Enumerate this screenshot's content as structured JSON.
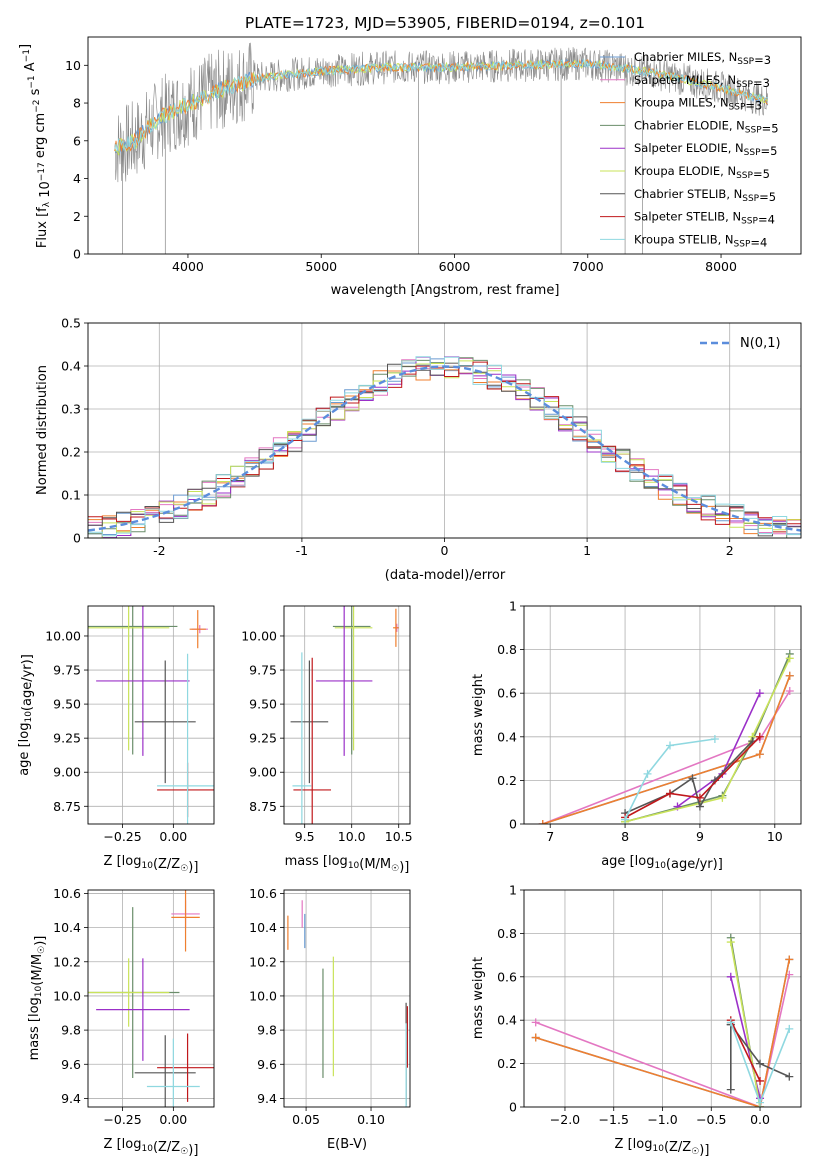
{
  "figure": {
    "title": "PLATE=1723, MJD=53905, FIBERID=0194, z=0.101"
  },
  "legend_entries": [
    {
      "label": "Chabrier MILES, N_SSP=3",
      "color": "#6b9bd1"
    },
    {
      "label": "Salpeter MILES, N_SSP=3",
      "color": "#e377c2"
    },
    {
      "label": "Kroupa MILES, N_SSP=3",
      "color": "#ef7f2f"
    },
    {
      "label": "Chabrier ELODIE, N_SSP=5",
      "color": "#6a8d6a"
    },
    {
      "label": "Salpeter ELODIE, N_SSP=5",
      "color": "#9b30c8"
    },
    {
      "label": "Kroupa ELODIE, N_SSP=5",
      "color": "#c9e35a"
    },
    {
      "label": "Chabrier STELIB, N_SSP=5",
      "color": "#555555"
    },
    {
      "label": "Salpeter STELIB, N_SSP=4",
      "color": "#c0181b"
    },
    {
      "label": "Kroupa STELIB, N_SSP=4",
      "color": "#8fd8e0"
    }
  ],
  "chart_data": [
    {
      "id": "spectrum",
      "type": "line",
      "xlabel": "wavelength [Angstrom, rest frame]",
      "ylabel": "Flux [f_λ 10^-17 erg cm^-2 s^-1 A^-1]",
      "xlim": [
        3250,
        8600
      ],
      "ylim": [
        0,
        11.5
      ],
      "xticks": [
        4000,
        5000,
        6000,
        7000,
        8000
      ],
      "yticks": [
        0,
        2,
        4,
        6,
        8,
        10
      ],
      "grid": false,
      "legend_position": "lower-right",
      "continuum_points": [
        [
          3450,
          5.6
        ],
        [
          3600,
          6.0
        ],
        [
          3800,
          7.3
        ],
        [
          4000,
          7.9
        ],
        [
          4200,
          8.6
        ],
        [
          4500,
          9.3
        ],
        [
          5000,
          9.7
        ],
        [
          5500,
          9.9
        ],
        [
          6000,
          9.9
        ],
        [
          6500,
          10.0
        ],
        [
          7000,
          10.1
        ],
        [
          7500,
          9.6
        ],
        [
          8000,
          8.8
        ],
        [
          8350,
          8.1
        ]
      ],
      "data_range": [
        3450,
        8350
      ]
    },
    {
      "id": "residual_histogram",
      "type": "histogram",
      "xlabel": "(data-model)/error",
      "ylabel": "Normed distribution",
      "xlim": [
        -2.5,
        2.5
      ],
      "ylim": [
        0,
        0.5
      ],
      "xticks": [
        -2,
        -1,
        0,
        1,
        2
      ],
      "yticks": [
        0.0,
        0.1,
        0.2,
        0.3,
        0.4,
        0.5
      ],
      "grid": true,
      "bin_width": 0.1,
      "reference_curve": {
        "label": "N(0,1)",
        "mean": 0,
        "sigma": 1,
        "color": "#5b8ddc"
      },
      "legend_position": "upper-right"
    },
    {
      "id": "age_vs_Z",
      "type": "errorbar",
      "xlabel": "Z [log10(Z/Z☉)]",
      "ylabel": "age [log10(age/yr)]",
      "xlim": [
        -0.42,
        0.2
      ],
      "ylim": [
        8.62,
        10.22
      ],
      "xticks": [
        -0.25,
        0.0
      ],
      "xtick_labels": [
        "−0.25",
        "0.00"
      ],
      "yticks": [
        8.75,
        9.0,
        9.25,
        9.5,
        9.75,
        10.0
      ],
      "ytick_labels": [
        "8.75",
        "9.00",
        "9.25",
        "9.50",
        "9.75",
        "10.00"
      ],
      "grid": true,
      "points": [
        {
          "x": 0.13,
          "y": 10.05,
          "xerr": 0.04,
          "yerr": 0.03,
          "color": "#e377c2"
        },
        {
          "x": 0.12,
          "y": 10.05,
          "xerr": 0.04,
          "yerr": 0.14,
          "color": "#ef7f2f"
        },
        {
          "x": -0.2,
          "y": 10.07,
          "xerr": 0.22,
          "yerr": 0.94,
          "color": "#6a8d6a"
        },
        {
          "x": -0.22,
          "y": 10.06,
          "xerr": 0.2,
          "yerr": 0.9,
          "color": "#c9e35a"
        },
        {
          "x": -0.15,
          "y": 9.67,
          "xerr": 0.23,
          "yerr": 0.55,
          "color": "#9b30c8"
        },
        {
          "x": -0.04,
          "y": 9.37,
          "xerr": 0.15,
          "yerr": 0.45,
          "color": "#555555"
        },
        {
          "x": 0.07,
          "y": 8.87,
          "xerr": 0.15,
          "yerr": 0.2,
          "color": "#c0181b"
        },
        {
          "x": 0.07,
          "y": 8.9,
          "xerr": 0.15,
          "yerr": 0.97,
          "color": "#8fd8e0"
        }
      ]
    },
    {
      "id": "age_vs_mass",
      "type": "errorbar",
      "xlabel": "mass [log10(M/M☉)]",
      "ylabel": "",
      "xlim": [
        9.28,
        10.62
      ],
      "ylim": [
        8.62,
        10.22
      ],
      "xticks": [
        9.5,
        10.0,
        10.5
      ],
      "xtick_labels": [
        "9.5",
        "10.0",
        "10.5"
      ],
      "yticks": [
        8.75,
        9.0,
        9.25,
        9.5,
        9.75,
        10.0
      ],
      "ytick_labels": [
        "8.75",
        "9.00",
        "9.25",
        "9.50",
        "9.75",
        "10.00"
      ],
      "grid": true,
      "points": [
        {
          "x": 10.48,
          "y": 10.06,
          "xerr": 0.02,
          "yerr": 0.03,
          "color": "#e377c2"
        },
        {
          "x": 10.47,
          "y": 10.06,
          "xerr": 0.03,
          "yerr": 0.14,
          "color": "#ef7f2f"
        },
        {
          "x": 10.0,
          "y": 10.07,
          "xerr": 0.2,
          "yerr": 0.94,
          "color": "#6a8d6a"
        },
        {
          "x": 10.02,
          "y": 10.06,
          "xerr": 0.2,
          "yerr": 0.9,
          "color": "#c9e35a"
        },
        {
          "x": 9.92,
          "y": 9.67,
          "xerr": 0.3,
          "yerr": 0.55,
          "color": "#9b30c8"
        },
        {
          "x": 9.55,
          "y": 9.37,
          "xerr": 0.2,
          "yerr": 0.45,
          "color": "#555555"
        },
        {
          "x": 9.58,
          "y": 8.87,
          "xerr": 0.2,
          "yerr": 0.97,
          "color": "#c0181b"
        },
        {
          "x": 9.47,
          "y": 8.9,
          "xerr": 0.1,
          "yerr": 0.98,
          "color": "#8fd8e0"
        }
      ]
    },
    {
      "id": "mass_weight_vs_age",
      "type": "line",
      "xlabel": "age [log10(age/yr)]",
      "ylabel": "mass weight",
      "xlim": [
        6.65,
        10.35
      ],
      "ylim": [
        0,
        1.0
      ],
      "xticks": [
        7,
        8,
        9,
        10
      ],
      "yticks": [
        0.0,
        0.2,
        0.4,
        0.6,
        0.8,
        1.0
      ],
      "grid": true,
      "series": [
        {
          "color": "#6b9bd1",
          "points": [
            [
              6.9,
              0.0
            ],
            [
              9.8,
              0.32
            ],
            [
              10.2,
              0.68
            ]
          ]
        },
        {
          "color": "#e377c2",
          "points": [
            [
              6.9,
              0.0
            ],
            [
              9.8,
              0.39
            ],
            [
              10.2,
              0.61
            ]
          ]
        },
        {
          "color": "#ef7f2f",
          "points": [
            [
              6.9,
              0.0
            ],
            [
              9.8,
              0.32
            ],
            [
              10.2,
              0.68
            ]
          ]
        },
        {
          "color": "#6a8d6a",
          "points": [
            [
              8.0,
              0.01
            ],
            [
              9.3,
              0.13
            ],
            [
              9.7,
              0.38
            ],
            [
              10.2,
              0.78
            ]
          ]
        },
        {
          "color": "#9b30c8",
          "points": [
            [
              8.7,
              0.08
            ],
            [
              9.3,
              0.23
            ],
            [
              9.8,
              0.6
            ]
          ]
        },
        {
          "color": "#c9e35a",
          "points": [
            [
              8.0,
              0.01
            ],
            [
              9.3,
              0.12
            ],
            [
              9.7,
              0.4
            ],
            [
              10.2,
              0.76
            ]
          ]
        },
        {
          "color": "#555555",
          "points": [
            [
              8.0,
              0.05
            ],
            [
              8.6,
              0.14
            ],
            [
              8.9,
              0.21
            ],
            [
              9.0,
              0.08
            ],
            [
              9.2,
              0.2
            ],
            [
              9.7,
              0.38
            ]
          ]
        },
        {
          "color": "#c0181b",
          "points": [
            [
              8.0,
              0.03
            ],
            [
              8.6,
              0.14
            ],
            [
              9.0,
              0.12
            ],
            [
              9.8,
              0.4
            ]
          ]
        },
        {
          "color": "#8fd8e0",
          "points": [
            [
              8.0,
              0.02
            ],
            [
              8.3,
              0.23
            ],
            [
              8.6,
              0.36
            ],
            [
              9.2,
              0.39
            ]
          ]
        }
      ]
    },
    {
      "id": "mass_vs_Z",
      "type": "errorbar",
      "xlabel": "Z [log10(Z/Z☉)]",
      "ylabel": "mass [log10(M/M☉)]",
      "xlim": [
        -0.42,
        0.2
      ],
      "ylim": [
        9.35,
        10.62
      ],
      "xticks": [
        -0.25,
        0.0
      ],
      "xtick_labels": [
        "−0.25",
        "0.00"
      ],
      "yticks": [
        9.4,
        9.6,
        9.8,
        10.0,
        10.2,
        10.4,
        10.6
      ],
      "ytick_labels": [
        "9.4",
        "9.6",
        "9.8",
        "10.0",
        "10.2",
        "10.4",
        "10.6"
      ],
      "grid": true,
      "points": [
        {
          "x": 0.06,
          "y": 10.48,
          "xerr": 0.07,
          "yerr": 0.08,
          "color": "#e377c2"
        },
        {
          "x": 0.06,
          "y": 10.46,
          "xerr": 0.07,
          "yerr": 0.2,
          "color": "#ef7f2f"
        },
        {
          "x": -0.2,
          "y": 10.02,
          "xerr": 0.23,
          "yerr": 0.5,
          "color": "#6a8d6a"
        },
        {
          "x": -0.22,
          "y": 10.02,
          "xerr": 0.2,
          "yerr": 0.2,
          "color": "#c9e35a"
        },
        {
          "x": -0.15,
          "y": 9.92,
          "xerr": 0.23,
          "yerr": 0.3,
          "color": "#9b30c8"
        },
        {
          "x": -0.04,
          "y": 9.55,
          "xerr": 0.15,
          "yerr": 0.22,
          "color": "#555555"
        },
        {
          "x": 0.07,
          "y": 9.58,
          "xerr": 0.15,
          "yerr": 0.2,
          "color": "#c0181b"
        },
        {
          "x": 0.0,
          "y": 9.47,
          "xerr": 0.13,
          "yerr": 0.28,
          "color": "#8fd8e0"
        }
      ]
    },
    {
      "id": "mass_vs_EBV",
      "type": "errorbar",
      "xlabel": "E(B-V)",
      "ylabel": "",
      "xlim": [
        0.033,
        0.13
      ],
      "ylim": [
        9.35,
        10.62
      ],
      "xticks": [
        0.05,
        0.1
      ],
      "xtick_labels": [
        "0.05",
        "0.10"
      ],
      "yticks": [
        9.4,
        9.6,
        9.8,
        10.0,
        10.2,
        10.4,
        10.6
      ],
      "ytick_labels": [
        "9.4",
        "9.6",
        "9.8",
        "10.0",
        "10.2",
        "10.4",
        "10.6"
      ],
      "grid": true,
      "points": [
        {
          "x": 0.047,
          "y": 10.48,
          "xerr": 0,
          "yerr": 0.08,
          "color": "#e377c2"
        },
        {
          "x": 0.036,
          "y": 10.37,
          "xerr": 0,
          "yerr": 0.1,
          "color": "#ef7f2f"
        },
        {
          "x": 0.049,
          "y": 10.38,
          "xerr": 0,
          "yerr": 0.1,
          "color": "#6b9bd1"
        },
        {
          "x": 0.063,
          "y": 9.84,
          "xerr": 0,
          "yerr": 0.32,
          "color": "#6a8d6a"
        },
        {
          "x": 0.071,
          "y": 9.88,
          "xerr": 0,
          "yerr": 0.35,
          "color": "#c9e35a"
        },
        {
          "x": 0.127,
          "y": 9.66,
          "xerr": 0,
          "yerr": 0.3,
          "color": "#555555"
        },
        {
          "x": 0.128,
          "y": 9.76,
          "xerr": 0,
          "yerr": 0.18,
          "color": "#c0181b"
        },
        {
          "x": 0.127,
          "y": 9.56,
          "xerr": 0,
          "yerr": 0.28,
          "color": "#8fd8e0"
        }
      ]
    },
    {
      "id": "mass_weight_vs_Z",
      "type": "line",
      "xlabel": "Z [log10(Z/Z☉)]",
      "ylabel": "mass weight",
      "xlim": [
        -2.42,
        0.42
      ],
      "ylim": [
        0,
        1.0
      ],
      "xticks": [
        -2.0,
        -1.5,
        -1.0,
        -0.5,
        0.0
      ],
      "xtick_labels": [
        "−2.0",
        "−1.5",
        "−1.0",
        "−0.5",
        "0.0"
      ],
      "yticks": [
        0.0,
        0.2,
        0.4,
        0.6,
        0.8,
        1.0
      ],
      "grid": true,
      "series": [
        {
          "color": "#6b9bd1",
          "points": [
            [
              -2.3,
              0.32
            ],
            [
              0.0,
              0.0
            ],
            [
              0.3,
              0.68
            ]
          ]
        },
        {
          "color": "#e377c2",
          "points": [
            [
              -2.3,
              0.39
            ],
            [
              0.0,
              0.0
            ],
            [
              0.3,
              0.61
            ]
          ]
        },
        {
          "color": "#ef7f2f",
          "points": [
            [
              -2.3,
              0.32
            ],
            [
              0.0,
              0.0
            ],
            [
              0.3,
              0.68
            ]
          ]
        },
        {
          "color": "#6a8d6a",
          "points": [
            [
              -0.3,
              0.78
            ],
            [
              0.0,
              0.0
            ]
          ]
        },
        {
          "color": "#9b30c8",
          "points": [
            [
              -0.3,
              0.6
            ],
            [
              0.0,
              0.04
            ]
          ]
        },
        {
          "color": "#c9e35a",
          "points": [
            [
              -0.3,
              0.76
            ],
            [
              0.0,
              0.0
            ]
          ]
        },
        {
          "color": "#555555",
          "points": [
            [
              -0.3,
              0.38
            ],
            [
              -0.3,
              0.08
            ],
            [
              -0.3,
              0.38
            ],
            [
              0.0,
              0.2
            ],
            [
              0.3,
              0.14
            ]
          ]
        },
        {
          "color": "#c0181b",
          "points": [
            [
              -0.3,
              0.4
            ],
            [
              0.0,
              0.12
            ]
          ]
        },
        {
          "color": "#8fd8e0",
          "points": [
            [
              -0.3,
              0.39
            ],
            [
              0.0,
              0.02
            ],
            [
              0.3,
              0.36
            ]
          ]
        }
      ]
    }
  ]
}
